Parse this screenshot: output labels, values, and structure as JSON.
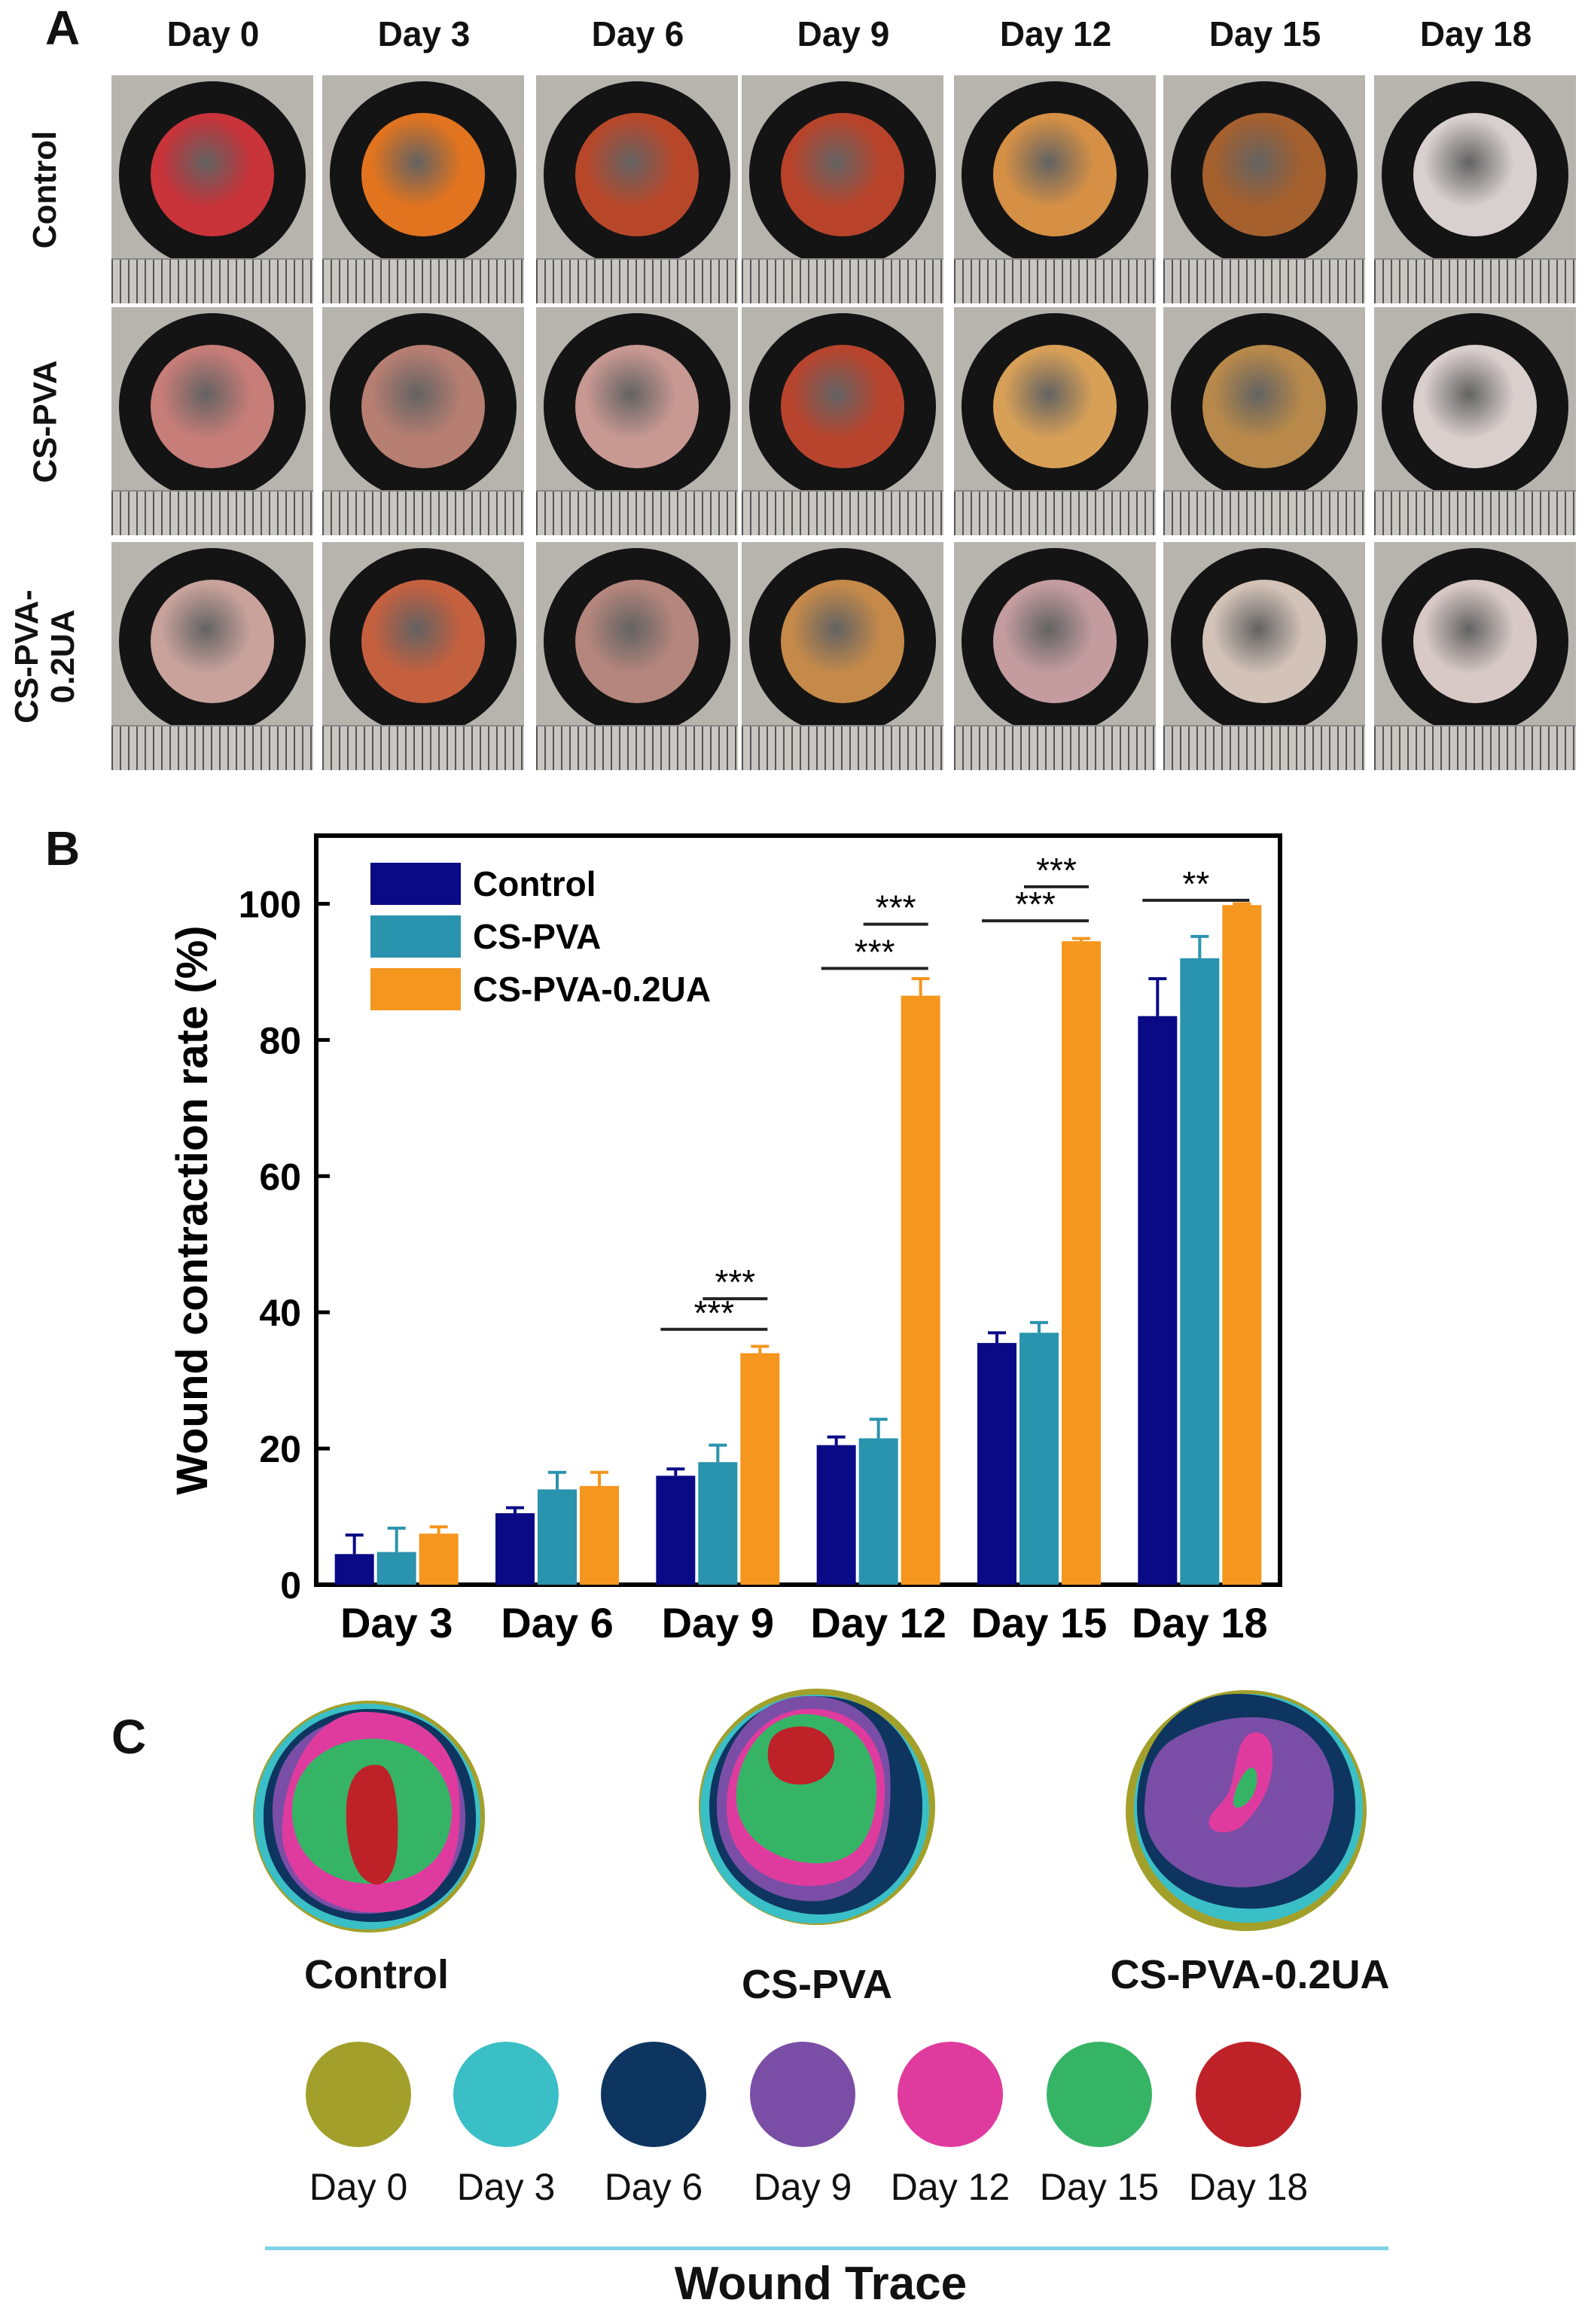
{
  "panel_a": {
    "letter": "A",
    "days": [
      "Day 0",
      "Day 3",
      "Day 6",
      "Day 9",
      "Day 12",
      "Day 15",
      "Day 18"
    ],
    "rows": [
      {
        "label_lines": [
          "Control"
        ],
        "wound_colors": [
          "#c8343a",
          "#e2741f",
          "#b8472a",
          "#b8432a",
          "#d59045",
          "#a5602e",
          "#d8cfd0"
        ]
      },
      {
        "label_lines": [
          "CS-PVA"
        ],
        "wound_colors": [
          "#c77d78",
          "#b77e72",
          "#c89892",
          "#b8442d",
          "#d8a057",
          "#b8894a",
          "#d9cfcd"
        ]
      },
      {
        "label_lines": [
          "CS-PVA-",
          "0.2UA"
        ],
        "wound_colors": [
          "#c9a29c",
          "#c5603f",
          "#b5867d",
          "#c58a4a",
          "#c49ca0",
          "#d3c2b8",
          "#d8c9c6"
        ]
      }
    ]
  },
  "panel_b": {
    "letter": "B",
    "sig_labels": [
      "***",
      "***",
      "***",
      "***",
      "***",
      "***",
      "**"
    ]
  },
  "chart_data": {
    "type": "bar",
    "title": "",
    "xlabel": "",
    "ylabel": "Wound contraction rate (%)",
    "ylim": [
      0,
      110
    ],
    "yticks": [
      "0",
      "20",
      "40",
      "60",
      "80",
      "100"
    ],
    "categories": [
      "Day 3",
      "Day 6",
      "Day 9",
      "Day 12",
      "Day 15",
      "Day 18"
    ],
    "series": [
      {
        "name": "Control",
        "color": "#0a0a86",
        "values": [
          4.5,
          10.5,
          16.0,
          20.5,
          35.5,
          83.5
        ],
        "errors": [
          2.8,
          0.8,
          1.0,
          1.2,
          1.5,
          5.5
        ]
      },
      {
        "name": "CS-PVA",
        "color": "#2a93ad",
        "values": [
          4.8,
          14.0,
          18.0,
          21.5,
          37.0,
          92.0
        ],
        "errors": [
          3.5,
          2.5,
          2.5,
          2.8,
          1.5,
          3.2
        ]
      },
      {
        "name": "CS-PVA-0.2UA",
        "color": "#f5961e",
        "values": [
          7.5,
          14.5,
          34.0,
          86.5,
          94.5,
          99.8
        ],
        "errors": [
          1.0,
          2.0,
          1.0,
          2.5,
          0.4,
          0.2
        ]
      }
    ],
    "legend_position": "top-left"
  },
  "panel_c": {
    "letter": "C",
    "groups": [
      "Control",
      "CS-PVA",
      "CS-PVA-0.2UA"
    ],
    "legend": [
      {
        "label": "Day 0",
        "color": "#a2a02a"
      },
      {
        "label": "Day 3",
        "color": "#3bbfc6"
      },
      {
        "label": "Day 6",
        "color": "#0d3560"
      },
      {
        "label": "Day 9",
        "color": "#7a4ea6"
      },
      {
        "label": "Day 12",
        "color": "#df3b9e"
      },
      {
        "label": "Day 15",
        "color": "#36b466"
      },
      {
        "label": "Day 18",
        "color": "#be2228"
      }
    ],
    "footer": "Wound Trace",
    "footer_line_color": "#7fd3e8"
  }
}
